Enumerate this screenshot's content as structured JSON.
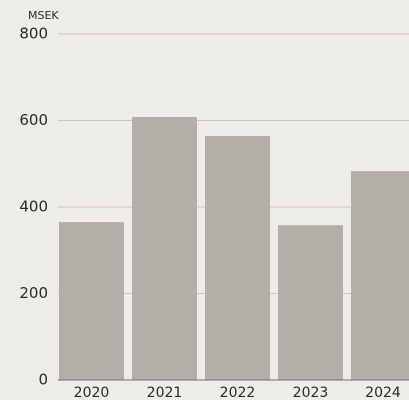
{
  "chart_data": {
    "type": "bar",
    "y_label": "MSEK",
    "categories": [
      "2020",
      "2021",
      "2022",
      "2023",
      "2024"
    ],
    "values": [
      365,
      608,
      564,
      358,
      483
    ],
    "color": "#b3aea7",
    "ylim": [
      0,
      800
    ],
    "yticks": [
      0,
      200,
      400,
      600,
      800
    ],
    "grid": true
  }
}
